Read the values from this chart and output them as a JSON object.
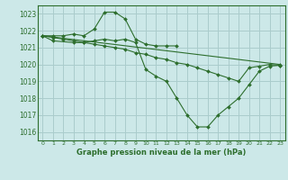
{
  "title": "Graphe pression niveau de la mer (hPa)",
  "bg_color": "#cce8e8",
  "grid_color": "#aacccc",
  "line_color": "#2d6e2d",
  "marker_color": "#2d6e2d",
  "xlim": [
    -0.5,
    23.5
  ],
  "ylim": [
    1015.5,
    1023.5
  ],
  "yticks": [
    1016,
    1017,
    1018,
    1019,
    1020,
    1021,
    1022,
    1023
  ],
  "xticks": [
    0,
    1,
    2,
    3,
    4,
    5,
    6,
    7,
    8,
    9,
    10,
    11,
    12,
    13,
    14,
    15,
    16,
    17,
    18,
    19,
    20,
    21,
    22,
    23
  ],
  "series": [
    {
      "x": [
        0,
        1,
        2,
        3,
        4,
        5,
        6,
        7,
        8,
        9,
        10,
        11,
        12,
        13
      ],
      "y": [
        1021.7,
        1021.7,
        1021.7,
        1021.8,
        1021.7,
        1022.1,
        1023.1,
        1023.1,
        1022.7,
        1021.5,
        1021.2,
        1021.1,
        1021.1,
        1021.1
      ]
    },
    {
      "x": [
        0,
        1,
        3,
        4,
        5,
        6,
        7,
        8,
        9,
        10,
        11,
        12,
        13,
        14,
        15,
        16,
        17,
        18,
        19,
        20,
        21,
        22,
        23
      ],
      "y": [
        1021.7,
        1021.4,
        1021.3,
        1021.3,
        1021.4,
        1021.5,
        1021.4,
        1021.5,
        1021.3,
        1019.7,
        1019.3,
        1019.0,
        1018.0,
        1017.0,
        1016.3,
        1016.3,
        1017.0,
        1017.5,
        1018.0,
        1018.8,
        1019.6,
        1019.9,
        1019.95
      ]
    },
    {
      "x": [
        0,
        1,
        2,
        3,
        4,
        5,
        6,
        7,
        8,
        9,
        10,
        11,
        12,
        13,
        14,
        15,
        16,
        17,
        18,
        19,
        20,
        21,
        22,
        23
      ],
      "y": [
        1021.7,
        1021.6,
        1021.5,
        1021.4,
        1021.3,
        1021.2,
        1021.1,
        1021.0,
        1020.9,
        1020.7,
        1020.6,
        1020.4,
        1020.3,
        1020.1,
        1020.0,
        1019.8,
        1019.6,
        1019.4,
        1019.2,
        1019.0,
        1019.8,
        1019.9,
        1020.0,
        1019.95
      ]
    },
    {
      "x": [
        0,
        23
      ],
      "y": [
        1021.7,
        1020.0
      ]
    }
  ]
}
